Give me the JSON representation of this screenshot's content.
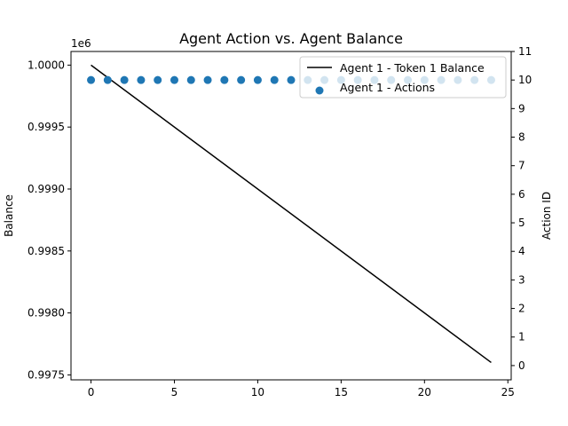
{
  "chart_data": {
    "type": "line+scatter",
    "title": "Agent Action vs. Agent Balance",
    "xlabel": "",
    "ylabel_left": "Balance",
    "ylabel_right": "Action ID",
    "left_offset_label": "1e6",
    "xlim": [
      -1.2,
      25.2
    ],
    "xticks": [
      0,
      5,
      10,
      15,
      20,
      25
    ],
    "ylim_left": [
      997460,
      1000110
    ],
    "yticks_left": [
      997500,
      998000,
      998500,
      999000,
      999500,
      1000000
    ],
    "ytick_labels_left": [
      "0.9975",
      "0.9980",
      "0.9985",
      "0.9990",
      "0.9995",
      "1.0000"
    ],
    "ylim_right": [
      -0.5,
      11
    ],
    "yticks_right": [
      0,
      1,
      2,
      3,
      4,
      5,
      6,
      7,
      8,
      9,
      10,
      11
    ],
    "legend_position": "top-right",
    "series": [
      {
        "name": "Agent 1 - Token 1 Balance",
        "kind": "line",
        "axis": "left",
        "color": "#000000",
        "x": [
          0,
          24
        ],
        "y": [
          1000000,
          997600
        ]
      },
      {
        "name": "Agent 1 - Actions",
        "kind": "scatter",
        "axis": "right",
        "color": "#1f77b4",
        "x": [
          0,
          1,
          2,
          3,
          4,
          5,
          6,
          7,
          8,
          9,
          10,
          11,
          12,
          13,
          14,
          15,
          16,
          17,
          18,
          19,
          20,
          21,
          22,
          23,
          24
        ],
        "y": [
          10,
          10,
          10,
          10,
          10,
          10,
          10,
          10,
          10,
          10,
          10,
          10,
          10,
          10,
          10,
          10,
          10,
          10,
          10,
          10,
          10,
          10,
          10,
          10,
          10
        ]
      }
    ]
  }
}
